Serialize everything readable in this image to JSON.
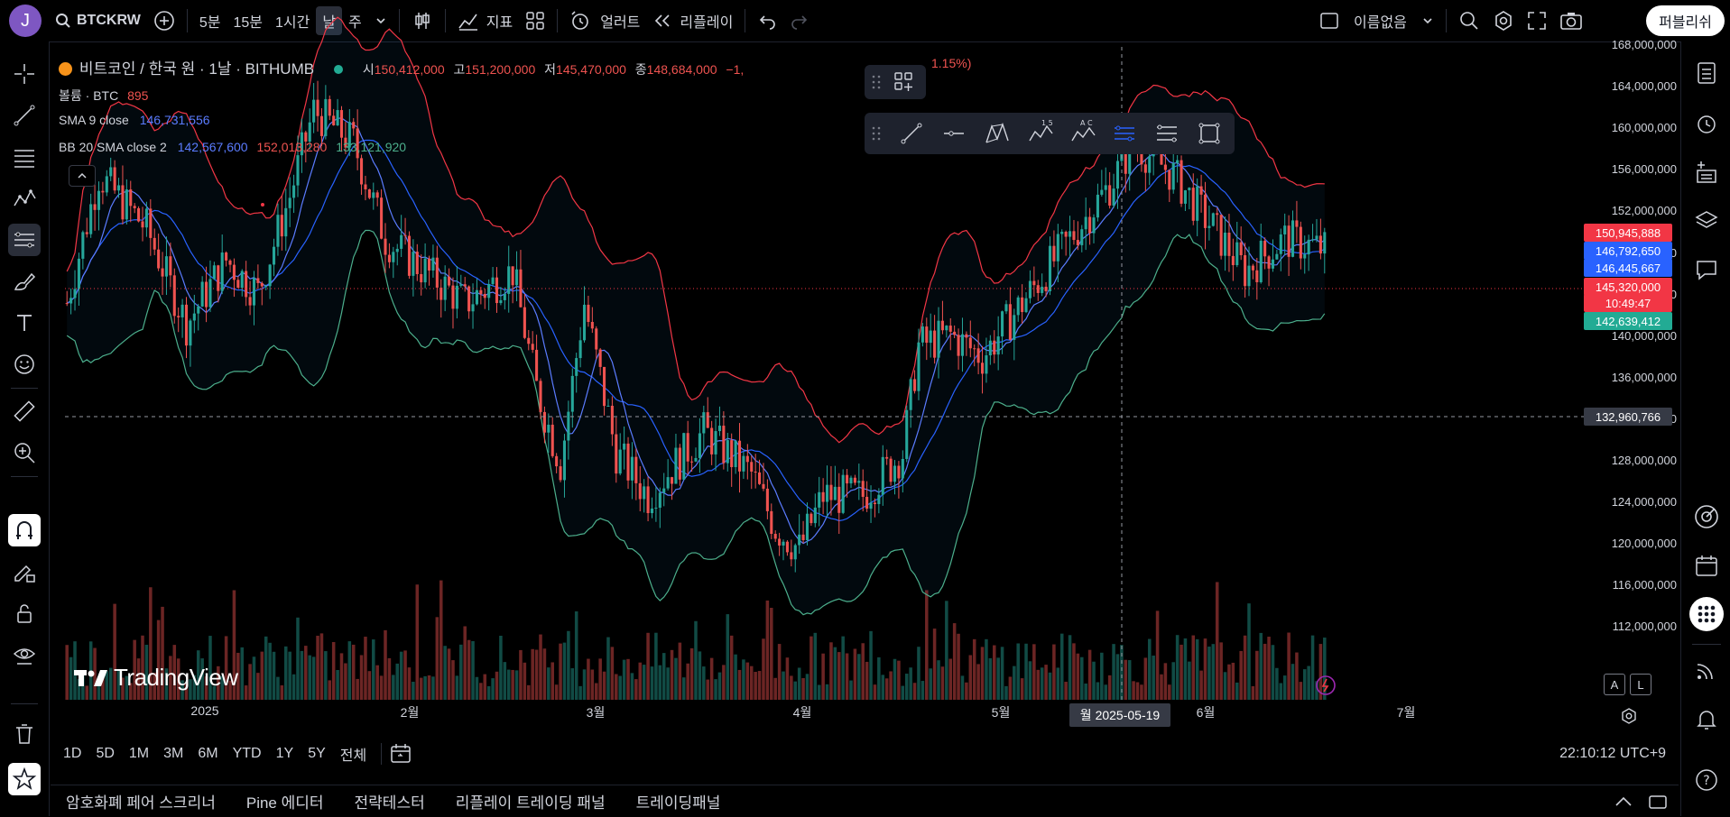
{
  "topbar": {
    "avatar_letter": "J",
    "symbol": "BTCKRW",
    "intervals": [
      "5분",
      "15분",
      "1시간",
      "날",
      "주"
    ],
    "indicators_label": "지표",
    "alert_label": "얼러트",
    "replay_label": "리플레이",
    "layout_name": "이름없음",
    "publish_label": "퍼블리쉬"
  },
  "legend": {
    "title": "비트코인 / 한국 원 · 1날 · BITHUMB",
    "open_label": "시",
    "open": "150,412,000",
    "high_label": "고",
    "high": "151,200,000",
    "low_label": "저",
    "low": "145,470,000",
    "close_label": "종",
    "close": "148,684,000",
    "change": "−1,",
    "change_pct": "1.15%)",
    "volume_label": "볼륨 · BTC",
    "volume": "895",
    "sma_label": "SMA 9 close",
    "sma": "146,731,556",
    "bb_label": "BB 20 SMA close 2",
    "bb_basis": "142,567,600",
    "bb_upper": "152,013,280",
    "bb_lower": "133,121,920"
  },
  "price_axis": [
    "168,000,000",
    "164,000,000",
    "160,000,000",
    "156,000,000",
    "152,000,000",
    "148,000,000",
    "144,000,000",
    "140,000,000",
    "136,000,000",
    "132,000,000",
    "128,000,000",
    "124,000,000",
    "120,000,000",
    "116,000,000",
    "112,000,000"
  ],
  "price_labels": [
    {
      "text": "150,945,888",
      "color": "#f23645"
    },
    {
      "text": "146,792,650",
      "color": "#2962ff"
    },
    {
      "text": "146,445,667",
      "color": "#2962ff"
    },
    {
      "text": "145,320,000",
      "color": "#f23645"
    },
    {
      "text": "10:49:47",
      "color": "#f23645"
    },
    {
      "text": "142,639,412",
      "color": "#22ab94"
    },
    {
      "text": "132,960,766",
      "color": "#363a45"
    }
  ],
  "time_axis": [
    "2025",
    "2월",
    "3월",
    "4월",
    "5월",
    "6월",
    "7월"
  ],
  "crosshair_date": "월 2025-05-19",
  "watermark": "TradingView",
  "scale_buttons": [
    "A",
    "L"
  ],
  "ranges": [
    "1D",
    "5D",
    "1M",
    "3M",
    "6M",
    "YTD",
    "1Y",
    "5Y",
    "전체"
  ],
  "clock": "22:10:12 UTC+9",
  "bottom_tabs": [
    "암호화폐 페어 스크리너",
    "Pine 에디터",
    "전략테스터",
    "리플레이 트레이딩 패널",
    "트레이딩패널"
  ],
  "chart_data": {
    "type": "candlestick",
    "price_range": [
      110000000,
      169000000
    ],
    "colors": {
      "up": "#26a69a",
      "down": "#ef5350",
      "sma": "#2962ff",
      "bb_upper": "#f23645",
      "bb_lower": "#4caf8c",
      "bb_basis": "#2962ff"
    }
  }
}
